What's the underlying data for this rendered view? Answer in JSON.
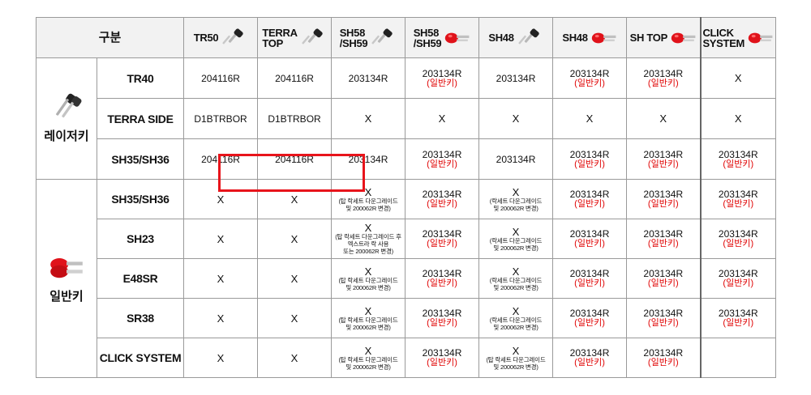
{
  "corner_label": "구분",
  "columns": [
    {
      "label": "TR50",
      "icon": "black-key-icon"
    },
    {
      "label": "TERRA\nTOP",
      "icon": "black-key-icon"
    },
    {
      "label": "SH58\n/SH59",
      "icon": "black-key-icon"
    },
    {
      "label": "SH58\n/SH59",
      "icon": "red-key-icon"
    },
    {
      "label": "SH48",
      "icon": "black-key-icon"
    },
    {
      "label": "SH48",
      "icon": "red-key-icon"
    },
    {
      "label": "SH TOP",
      "icon": "red-key-icon"
    },
    {
      "label": "CLICK\nSYSTEM",
      "icon": "red-key-icon"
    }
  ],
  "groups": [
    {
      "label": "레이저키",
      "icon": "black-key-pair-icon",
      "rows": [
        {
          "label": "TR40",
          "cells": [
            {
              "code": "204116R"
            },
            {
              "code": "204116R"
            },
            {
              "code": "203134R"
            },
            {
              "code": "203134R",
              "note": "(일반키)"
            },
            {
              "code": "203134R"
            },
            {
              "code": "203134R",
              "note": "(일반키)"
            },
            {
              "code": "203134R",
              "note": "(일반키)"
            },
            {
              "code": "X"
            }
          ]
        },
        {
          "label": "TERRA SIDE",
          "cells": [
            {
              "code": "D1BTRBOR"
            },
            {
              "code": "D1BTRBOR"
            },
            {
              "code": "X"
            },
            {
              "code": "X"
            },
            {
              "code": "X"
            },
            {
              "code": "X"
            },
            {
              "code": "X"
            },
            {
              "code": "X"
            }
          ]
        },
        {
          "label": "SH35/SH36",
          "cells": [
            {
              "code": "204116R"
            },
            {
              "code": "204116R"
            },
            {
              "code": "203134R"
            },
            {
              "code": "203134R",
              "note": "(일반키)"
            },
            {
              "code": "203134R"
            },
            {
              "code": "203134R",
              "note": "(일반키)"
            },
            {
              "code": "203134R",
              "note": "(일반키)"
            },
            {
              "code": "203134R",
              "note": "(일반키)"
            }
          ]
        }
      ]
    },
    {
      "label": "일반키",
      "icon": "red-key-pair-icon",
      "rows": [
        {
          "label": "SH35/SH36",
          "cells": [
            {
              "code": "X"
            },
            {
              "code": "X"
            },
            {
              "code": "X",
              "small": [
                "(탑 락세트 다운그레이드",
                "및 200062R 변경)"
              ]
            },
            {
              "code": "203134R",
              "note": "(일반키)"
            },
            {
              "code": "X",
              "small": [
                "(락세트 다운그레이드",
                "및 200062R 변경)"
              ]
            },
            {
              "code": "203134R",
              "note": "(일반키)"
            },
            {
              "code": "203134R",
              "note": "(일반키)"
            },
            {
              "code": "203134R",
              "note": "(일반키)"
            }
          ]
        },
        {
          "label": "SH23",
          "cells": [
            {
              "code": "X"
            },
            {
              "code": "X"
            },
            {
              "code": "X",
              "small": [
                "(탑 락세트 다운그레이드 후",
                "엑스트라 락 사용",
                "또는 200062R 변경)"
              ]
            },
            {
              "code": "203134R",
              "note": "(일반키)"
            },
            {
              "code": "X",
              "small": [
                "(락세트 다운그레이드",
                "및 200062R 변경)"
              ]
            },
            {
              "code": "203134R",
              "note": "(일반키)"
            },
            {
              "code": "203134R",
              "note": "(일반키)"
            },
            {
              "code": "203134R",
              "note": "(일반키)"
            }
          ]
        },
        {
          "label": "E48SR",
          "cells": [
            {
              "code": "X"
            },
            {
              "code": "X"
            },
            {
              "code": "X",
              "small": [
                "(탑 락세트 다운그레이드",
                "및 200062R 변경)"
              ]
            },
            {
              "code": "203134R",
              "note": "(일반키)"
            },
            {
              "code": "X",
              "small": [
                "(락세트 다운그레이드",
                "및 200062R 변경)"
              ]
            },
            {
              "code": "203134R",
              "note": "(일반키)"
            },
            {
              "code": "203134R",
              "note": "(일반키)"
            },
            {
              "code": "203134R",
              "note": "(일반키)"
            }
          ]
        },
        {
          "label": "SR38",
          "cells": [
            {
              "code": "X"
            },
            {
              "code": "X"
            },
            {
              "code": "X",
              "small": [
                "(탑 락세트 다운그레이드",
                "및 200062R 변경)"
              ]
            },
            {
              "code": "203134R",
              "note": "(일반키)"
            },
            {
              "code": "X",
              "small": [
                "(락세트 다운그레이드",
                "및 200062R 변경)"
              ]
            },
            {
              "code": "203134R",
              "note": "(일반키)"
            },
            {
              "code": "203134R",
              "note": "(일반키)"
            },
            {
              "code": "203134R",
              "note": "(일반키)"
            }
          ]
        },
        {
          "label": "CLICK SYSTEM",
          "cells": [
            {
              "code": "X"
            },
            {
              "code": "X"
            },
            {
              "code": "X",
              "small": [
                "(탑 락세트 다운그레이드",
                "및 200062R 변경)"
              ]
            },
            {
              "code": "203134R",
              "note": "(일반키)"
            },
            {
              "code": "X",
              "small": [
                "(탑 락세트 다운그레이드",
                "및 200062R 변경)"
              ]
            },
            {
              "code": "203134R",
              "note": "(일반키)"
            },
            {
              "code": "203134R",
              "note": "(일반키)"
            },
            {
              "code": ""
            }
          ]
        }
      ]
    }
  ],
  "highlight": {
    "group": 0,
    "row": 2,
    "cols": [
      0,
      1
    ],
    "color": "#e8141b"
  },
  "colors": {
    "note_red": "#e00000",
    "header_bg": "#f2f2f2",
    "key_red": "#e0121a",
    "key_black": "#222222"
  }
}
